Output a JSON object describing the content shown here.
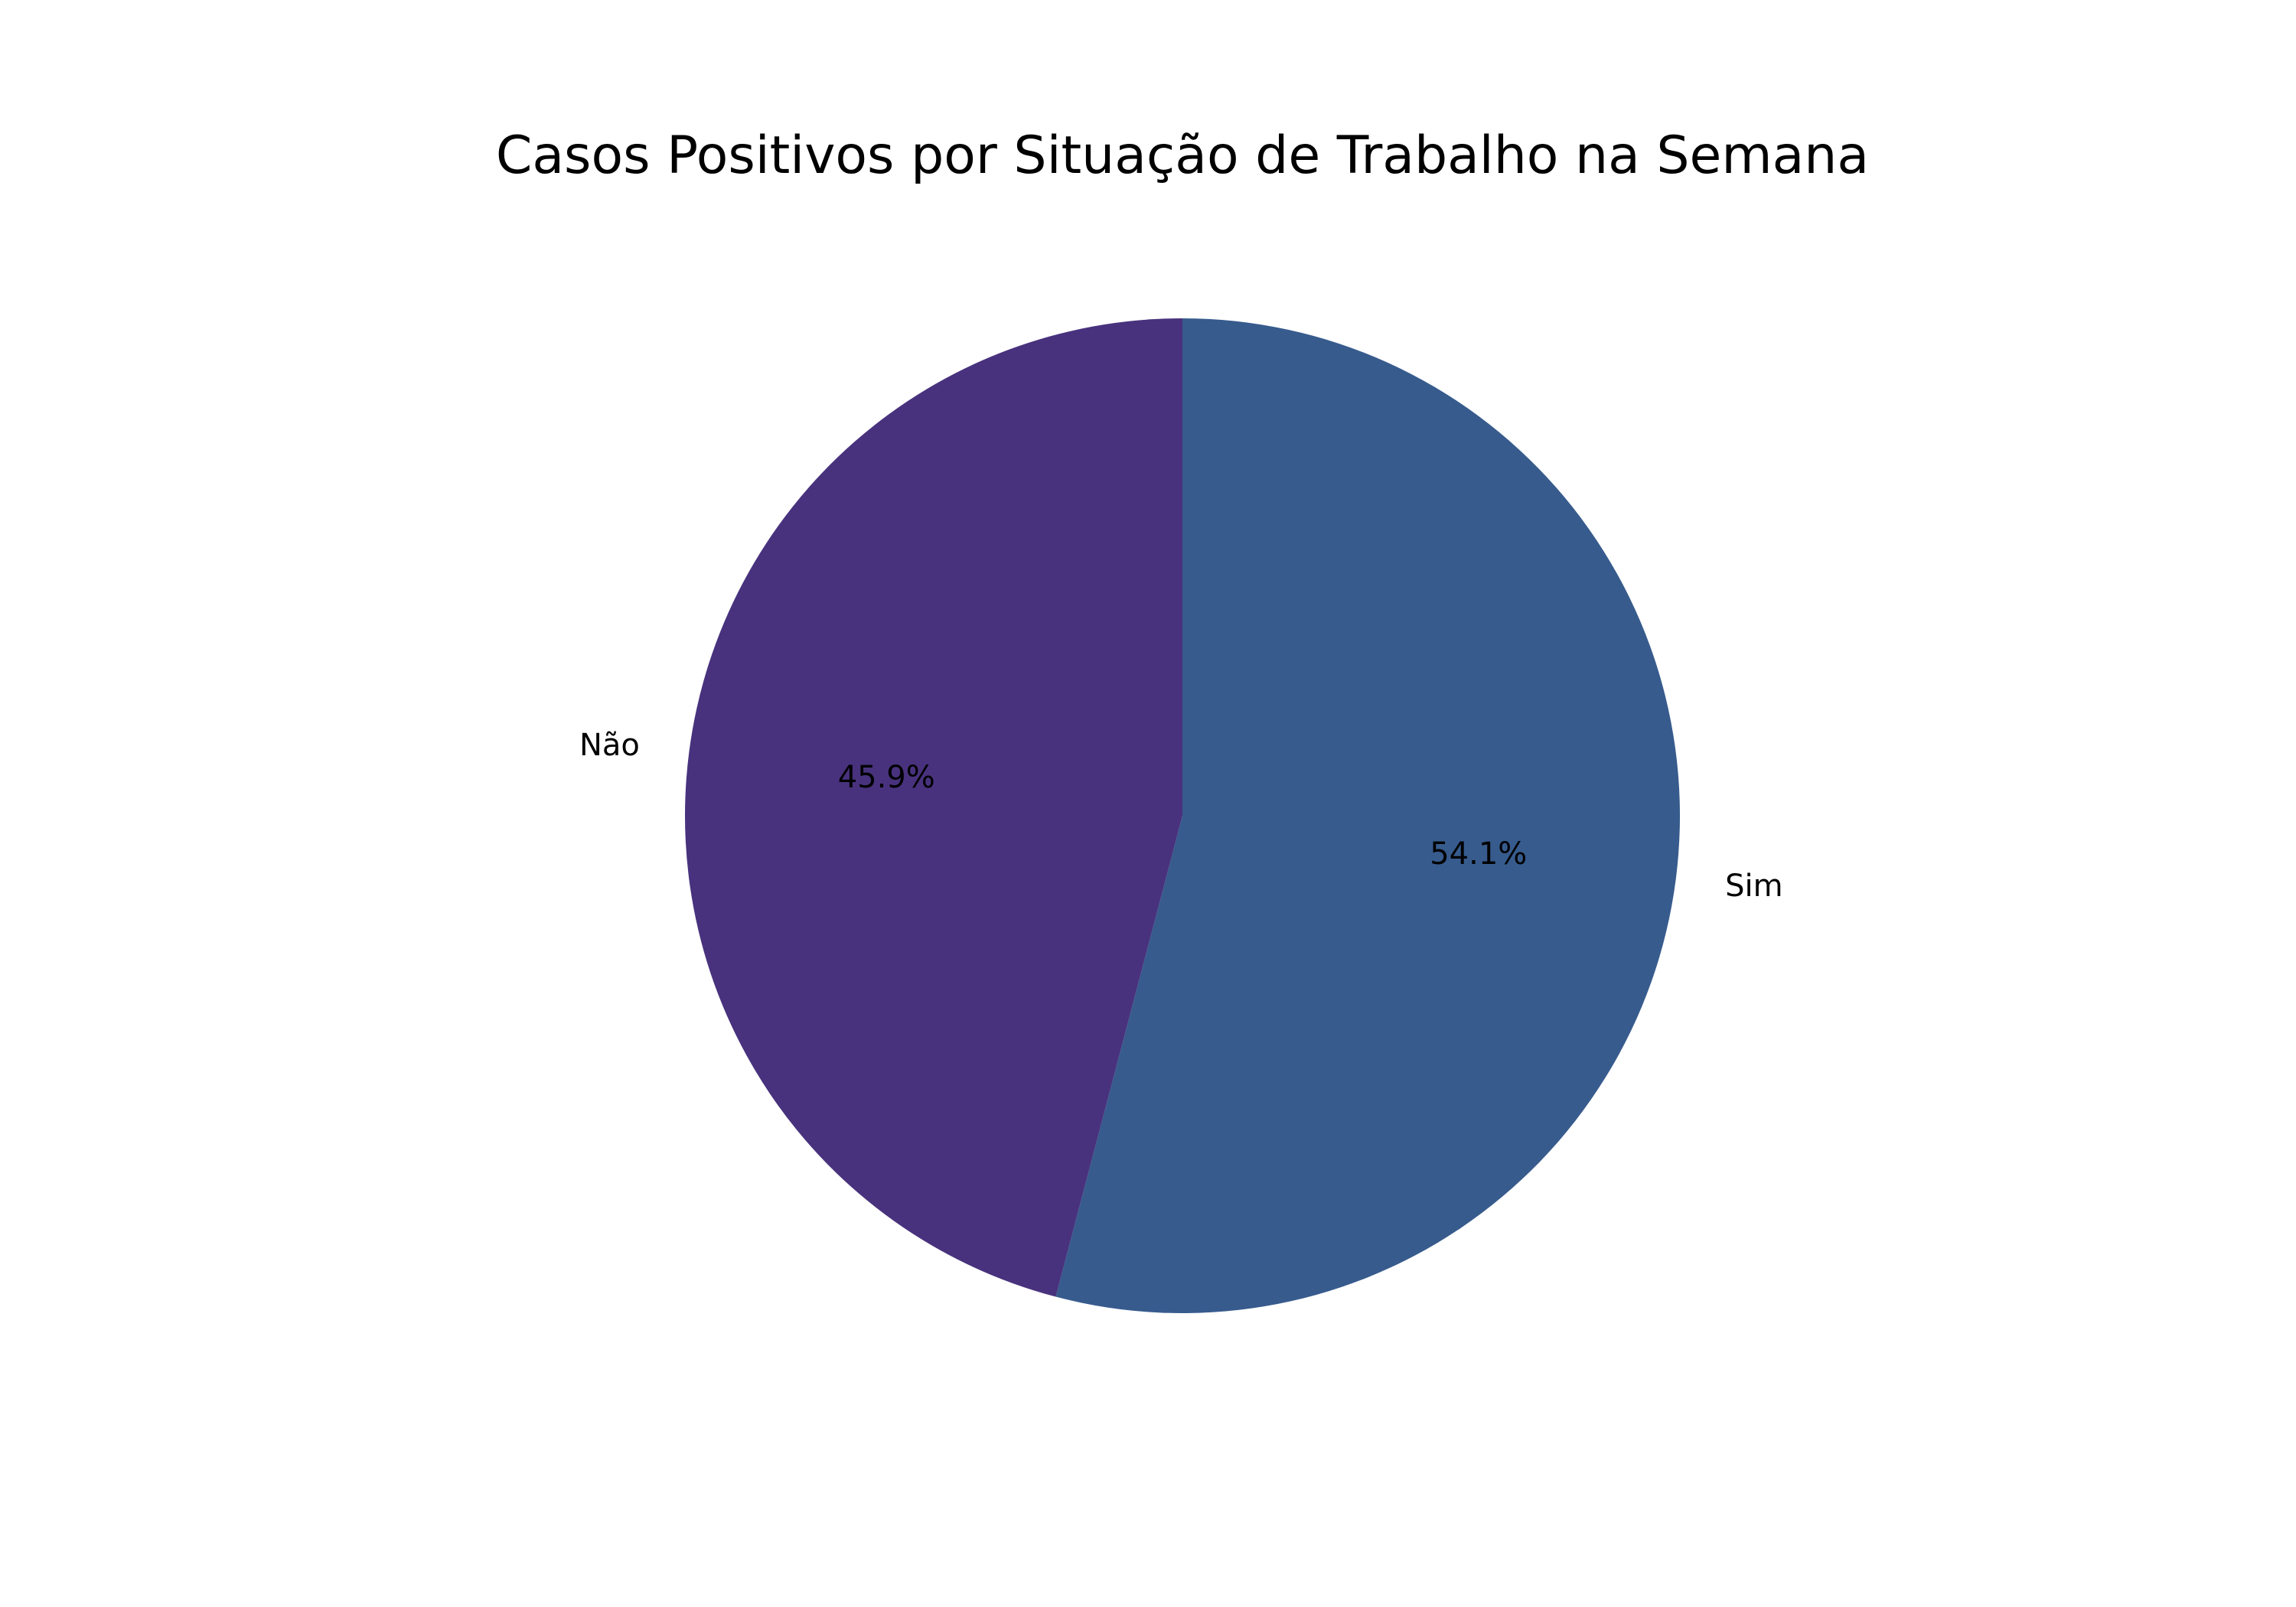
{
  "chart_data": {
    "type": "pie",
    "title": "Casos Positivos por Situação de Trabalho na Semana",
    "slices": [
      {
        "label": "Sim",
        "value": 54.1,
        "pct_label": "54.1%",
        "color": "#375b8d"
      },
      {
        "label": "Não",
        "value": 45.9,
        "pct_label": "45.9%",
        "color": "#48327d"
      }
    ],
    "start_angle_deg": 90,
    "direction": "clockwise",
    "legend": "none"
  }
}
